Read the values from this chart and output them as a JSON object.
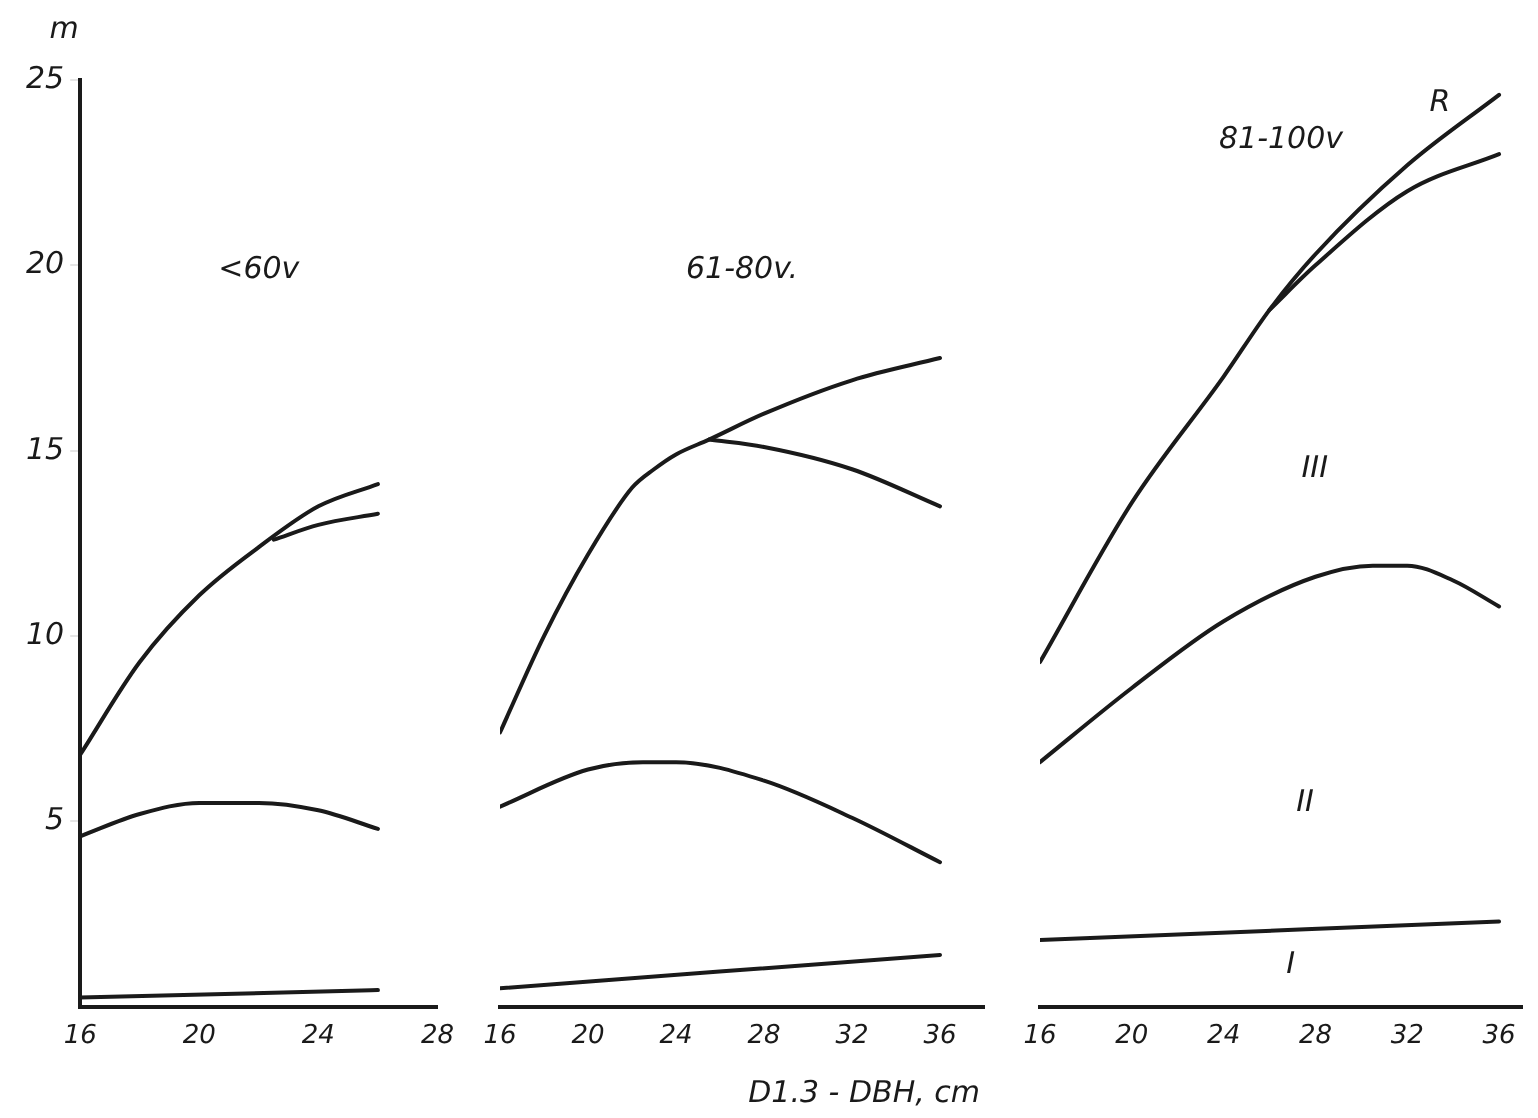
{
  "chart_data": [
    {
      "type": "line",
      "title": "<60v",
      "ylabel": "m",
      "xlim": [
        16,
        28
      ],
      "xticks": [
        16,
        20,
        24,
        28
      ],
      "ylim": [
        0,
        25
      ],
      "yticks": [
        5,
        10,
        15,
        20,
        25
      ],
      "grid": false,
      "legend": false,
      "marker": "none",
      "line_style": "solid",
      "series": [
        {
          "color": "#1a1a1a",
          "x": [
            16,
            18,
            20,
            22,
            24,
            26
          ],
          "values": [
            6.8,
            9.3,
            11.1,
            12.4,
            13.5,
            14.1
          ]
        },
        {
          "color": "#1a1a1a",
          "x": [
            22.5,
            24,
            26
          ],
          "values": [
            12.6,
            13.0,
            13.3
          ]
        },
        {
          "color": "#1a1a1a",
          "x": [
            16,
            18,
            20,
            22,
            24,
            26
          ],
          "values": [
            4.6,
            5.2,
            5.5,
            5.5,
            5.3,
            4.8
          ]
        },
        {
          "color": "#1a1a1a",
          "x": [
            16,
            26
          ],
          "values": [
            0.25,
            0.45
          ]
        }
      ]
    },
    {
      "type": "line",
      "title": "61-80v.",
      "xlabel": "D1.3 - DBH, cm",
      "xlim": [
        16,
        38
      ],
      "xticks": [
        16,
        20,
        24,
        28,
        32,
        36
      ],
      "ylim": [
        0,
        25
      ],
      "yticks": [
        5,
        10,
        15,
        20,
        25
      ],
      "tick_labels": "x",
      "grid": false,
      "legend": false,
      "marker": "none",
      "line_style": "solid",
      "series": [
        {
          "color": "#1a1a1a",
          "x": [
            16,
            18,
            20,
            22,
            23,
            24,
            25.5,
            28,
            32,
            36
          ],
          "values": [
            7.4,
            10,
            12.2,
            14.0,
            14.5,
            14.9,
            15.3,
            16.0,
            16.9,
            17.5
          ]
        },
        {
          "color": "#1a1a1a",
          "x": [
            25.5,
            28,
            32,
            36
          ],
          "values": [
            15.3,
            15.1,
            14.5,
            13.5
          ]
        },
        {
          "color": "#1a1a1a",
          "x": [
            16,
            20,
            22.5,
            24,
            28,
            32,
            36
          ],
          "values": [
            5.4,
            6.4,
            6.6,
            6.6,
            6.1,
            5.1,
            3.9
          ]
        },
        {
          "color": "#1a1a1a",
          "x": [
            16,
            36
          ],
          "values": [
            0.5,
            1.4
          ]
        }
      ]
    },
    {
      "type": "line",
      "title": "81-100v",
      "xlim": [
        16,
        37
      ],
      "xticks": [
        16,
        20,
        24,
        28,
        32,
        36
      ],
      "ylim": [
        0,
        25
      ],
      "yticks": [
        5,
        10,
        15,
        20,
        25
      ],
      "tick_labels": "x",
      "grid": false,
      "legend": false,
      "marker": "none",
      "line_style": "solid",
      "annotations": [
        "R",
        "III",
        "II",
        "I"
      ],
      "series": [
        {
          "color": "#1a1a1a",
          "x": [
            16,
            20,
            24,
            26,
            28,
            32,
            36
          ],
          "values": [
            9.3,
            13.6,
            17.0,
            18.8,
            20.3,
            22.7,
            24.6
          ]
        },
        {
          "color": "#1a1a1a",
          "x": [
            26,
            28,
            32,
            36
          ],
          "values": [
            18.8,
            20.0,
            22.0,
            23.0
          ]
        },
        {
          "color": "#1a1a1a",
          "x": [
            16,
            20,
            24,
            28,
            30.5,
            32,
            34,
            36
          ],
          "values": [
            6.6,
            8.6,
            10.4,
            11.6,
            11.9,
            11.9,
            11.5,
            10.8
          ]
        },
        {
          "color": "#1a1a1a",
          "x": [
            16,
            36
          ],
          "values": [
            1.8,
            2.3
          ]
        }
      ]
    }
  ]
}
